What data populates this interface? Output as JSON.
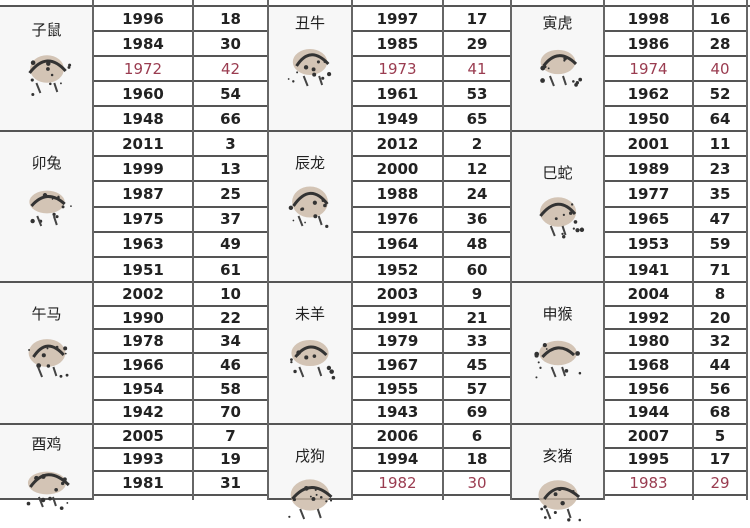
{
  "highlight_color": "#9a3c50",
  "groups": [
    {
      "animals": [
        {
          "label": "子鼠",
          "icon": "rat-ink-icon",
          "rows": [
            [
              "1996",
              "18"
            ],
            [
              "1984",
              "30"
            ],
            [
              "1972",
              "42"
            ],
            [
              "1960",
              "54"
            ],
            [
              "1948",
              "66"
            ]
          ]
        },
        {
          "label": "丑牛",
          "icon": "ox-ink-icon",
          "rows": [
            [
              "1997",
              "17"
            ],
            [
              "1985",
              "29"
            ],
            [
              "1973",
              "41"
            ],
            [
              "1961",
              "53"
            ],
            [
              "1949",
              "65"
            ]
          ]
        },
        {
          "label": "寅虎",
          "icon": "tiger-ink-icon",
          "rows": [
            [
              "1998",
              "16"
            ],
            [
              "1986",
              "28"
            ],
            [
              "1974",
              "40"
            ],
            [
              "1962",
              "52"
            ],
            [
              "1950",
              "64"
            ]
          ]
        }
      ],
      "highlight_row": 2
    },
    {
      "animals": [
        {
          "label": "卯兔",
          "icon": "rabbit-ink-icon",
          "rows": [
            [
              "2011",
              "3"
            ],
            [
              "1999",
              "13"
            ],
            [
              "1987",
              "25"
            ],
            [
              "1975",
              "37"
            ],
            [
              "1963",
              "49"
            ],
            [
              "1951",
              "61"
            ]
          ]
        },
        {
          "label": "辰龙",
          "icon": "dragon-ink-icon",
          "rows": [
            [
              "2012",
              "2"
            ],
            [
              "2000",
              "12"
            ],
            [
              "1988",
              "24"
            ],
            [
              "1976",
              "36"
            ],
            [
              "1964",
              "48"
            ],
            [
              "1952",
              "60"
            ]
          ]
        },
        {
          "label": "巳蛇",
          "icon": "snake-ink-icon",
          "rows": [
            [
              "2001",
              "11"
            ],
            [
              "1989",
              "23"
            ],
            [
              "1977",
              "35"
            ],
            [
              "1965",
              "47"
            ],
            [
              "1953",
              "59"
            ],
            [
              "1941",
              "71"
            ]
          ]
        }
      ],
      "highlight_row": -1
    },
    {
      "animals": [
        {
          "label": "午马",
          "icon": "horse-ink-icon",
          "rows": [
            [
              "2002",
              "10"
            ],
            [
              "1990",
              "22"
            ],
            [
              "1978",
              "34"
            ],
            [
              "1966",
              "46"
            ],
            [
              "1954",
              "58"
            ],
            [
              "1942",
              "70"
            ]
          ]
        },
        {
          "label": "未羊",
          "icon": "goat-ink-icon",
          "rows": [
            [
              "2003",
              "9"
            ],
            [
              "1991",
              "21"
            ],
            [
              "1979",
              "33"
            ],
            [
              "1967",
              "45"
            ],
            [
              "1955",
              "57"
            ],
            [
              "1943",
              "69"
            ]
          ]
        },
        {
          "label": "申猴",
          "icon": "monkey-ink-icon",
          "rows": [
            [
              "2004",
              "8"
            ],
            [
              "1992",
              "20"
            ],
            [
              "1980",
              "32"
            ],
            [
              "1968",
              "44"
            ],
            [
              "1956",
              "56"
            ],
            [
              "1944",
              "68"
            ]
          ]
        }
      ],
      "highlight_row": -1
    },
    {
      "animals": [
        {
          "label": "酉鸡",
          "icon": "rooster-ink-icon",
          "rows": [
            [
              "2005",
              "7"
            ],
            [
              "1993",
              "19"
            ],
            [
              "1981",
              "31"
            ]
          ]
        },
        {
          "label": "戌狗",
          "icon": "dog-ink-icon",
          "rows": [
            [
              "2006",
              "6"
            ],
            [
              "1994",
              "18"
            ],
            [
              "1982",
              "30"
            ]
          ]
        },
        {
          "label": "亥猪",
          "icon": "pig-ink-icon",
          "rows": [
            [
              "2007",
              "5"
            ],
            [
              "1995",
              "17"
            ],
            [
              "1983",
              "29"
            ]
          ]
        }
      ],
      "highlight_row": 2,
      "highlight_cols": [
        1,
        2
      ]
    }
  ]
}
